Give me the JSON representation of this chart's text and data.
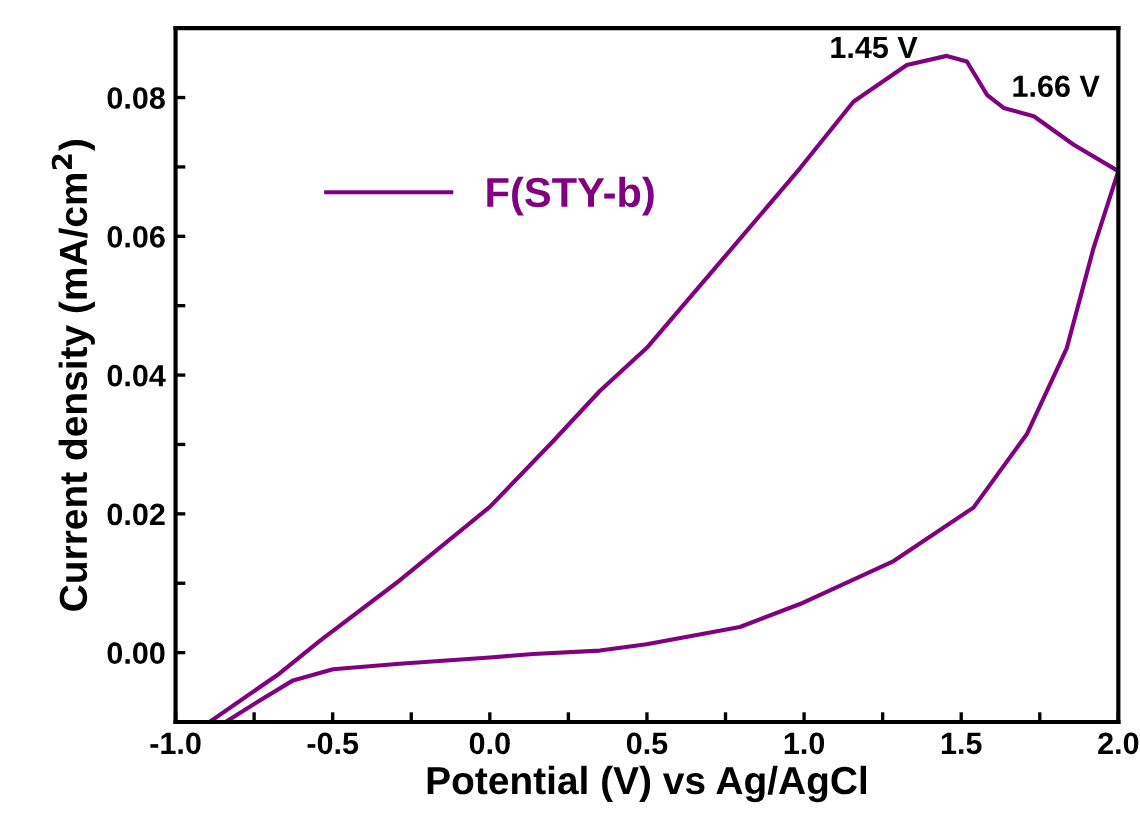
{
  "chart_data": {
    "type": "line",
    "xlabel": "Potential (V) vs Ag/AgCl",
    "ylabel": "Current density (mA/cm$^{2}$)",
    "series": [
      {
        "name": "F(STY-b)",
        "color": "#800080",
        "x": [
          -0.886,
          -0.669,
          -0.541,
          -0.287,
          0.0,
          0.202,
          0.35,
          0.499,
          0.754,
          0.987,
          1.157,
          1.327,
          1.454,
          1.518,
          1.582,
          1.635,
          1.731,
          1.858,
          2.0,
          1.921,
          1.836,
          1.709,
          1.539,
          1.285,
          0.987,
          0.796,
          0.499,
          0.35,
          0.138,
          0.0,
          -0.287,
          -0.499,
          -0.626,
          -0.732,
          -0.834
        ],
        "values": [
          -0.0098,
          -0.003,
          0.0017,
          0.0104,
          0.021,
          0.0305,
          0.0377,
          0.0439,
          0.0574,
          0.0698,
          0.0794,
          0.0847,
          0.086,
          0.0852,
          0.0804,
          0.0785,
          0.0773,
          0.0732,
          0.0694,
          0.0583,
          0.0439,
          0.0315,
          0.0209,
          0.0132,
          0.007,
          0.0037,
          0.0012,
          0.0003,
          -0.0002,
          -0.0007,
          -0.0016,
          -0.0024,
          -0.004,
          -0.0069,
          -0.0098
        ]
      }
    ],
    "annotations": [
      {
        "text": "1.45 V",
        "x": 1.45,
        "y": 0.086
      },
      {
        "text": "1.66 V",
        "x": 1.66,
        "y": 0.078
      }
    ],
    "xlim": [
      -1.0,
      2.0
    ],
    "xticks": [
      {
        "value": -1.0,
        "label": "-1.0"
      },
      {
        "value": -0.75,
        "label": null
      },
      {
        "value": -0.5,
        "label": "-0.5"
      },
      {
        "value": -0.25,
        "label": null
      },
      {
        "value": 0.0,
        "label": "0.0"
      },
      {
        "value": 0.25,
        "label": null
      },
      {
        "value": 0.5,
        "label": "0.5"
      },
      {
        "value": 0.75,
        "label": null
      },
      {
        "value": 1.0,
        "label": "1.0"
      },
      {
        "value": 1.25,
        "label": null
      },
      {
        "value": 1.5,
        "label": "1.5"
      },
      {
        "value": 1.75,
        "label": null
      },
      {
        "value": 2.0,
        "label": "2.0"
      }
    ],
    "ylim": [
      -0.01,
      0.09
    ],
    "yticks": [
      {
        "value": 0.0,
        "label": "0.00"
      },
      {
        "value": 0.01,
        "label": null
      },
      {
        "value": 0.02,
        "label": "0.02"
      },
      {
        "value": 0.03,
        "label": null
      },
      {
        "value": 0.04,
        "label": "0.04"
      },
      {
        "value": 0.05,
        "label": null
      },
      {
        "value": 0.06,
        "label": "0.06"
      },
      {
        "value": 0.07,
        "label": null
      },
      {
        "value": 0.08,
        "label": "0.08"
      }
    ],
    "grid": false,
    "legend": "top left",
    "marker": "none",
    "line_style": "solid"
  }
}
